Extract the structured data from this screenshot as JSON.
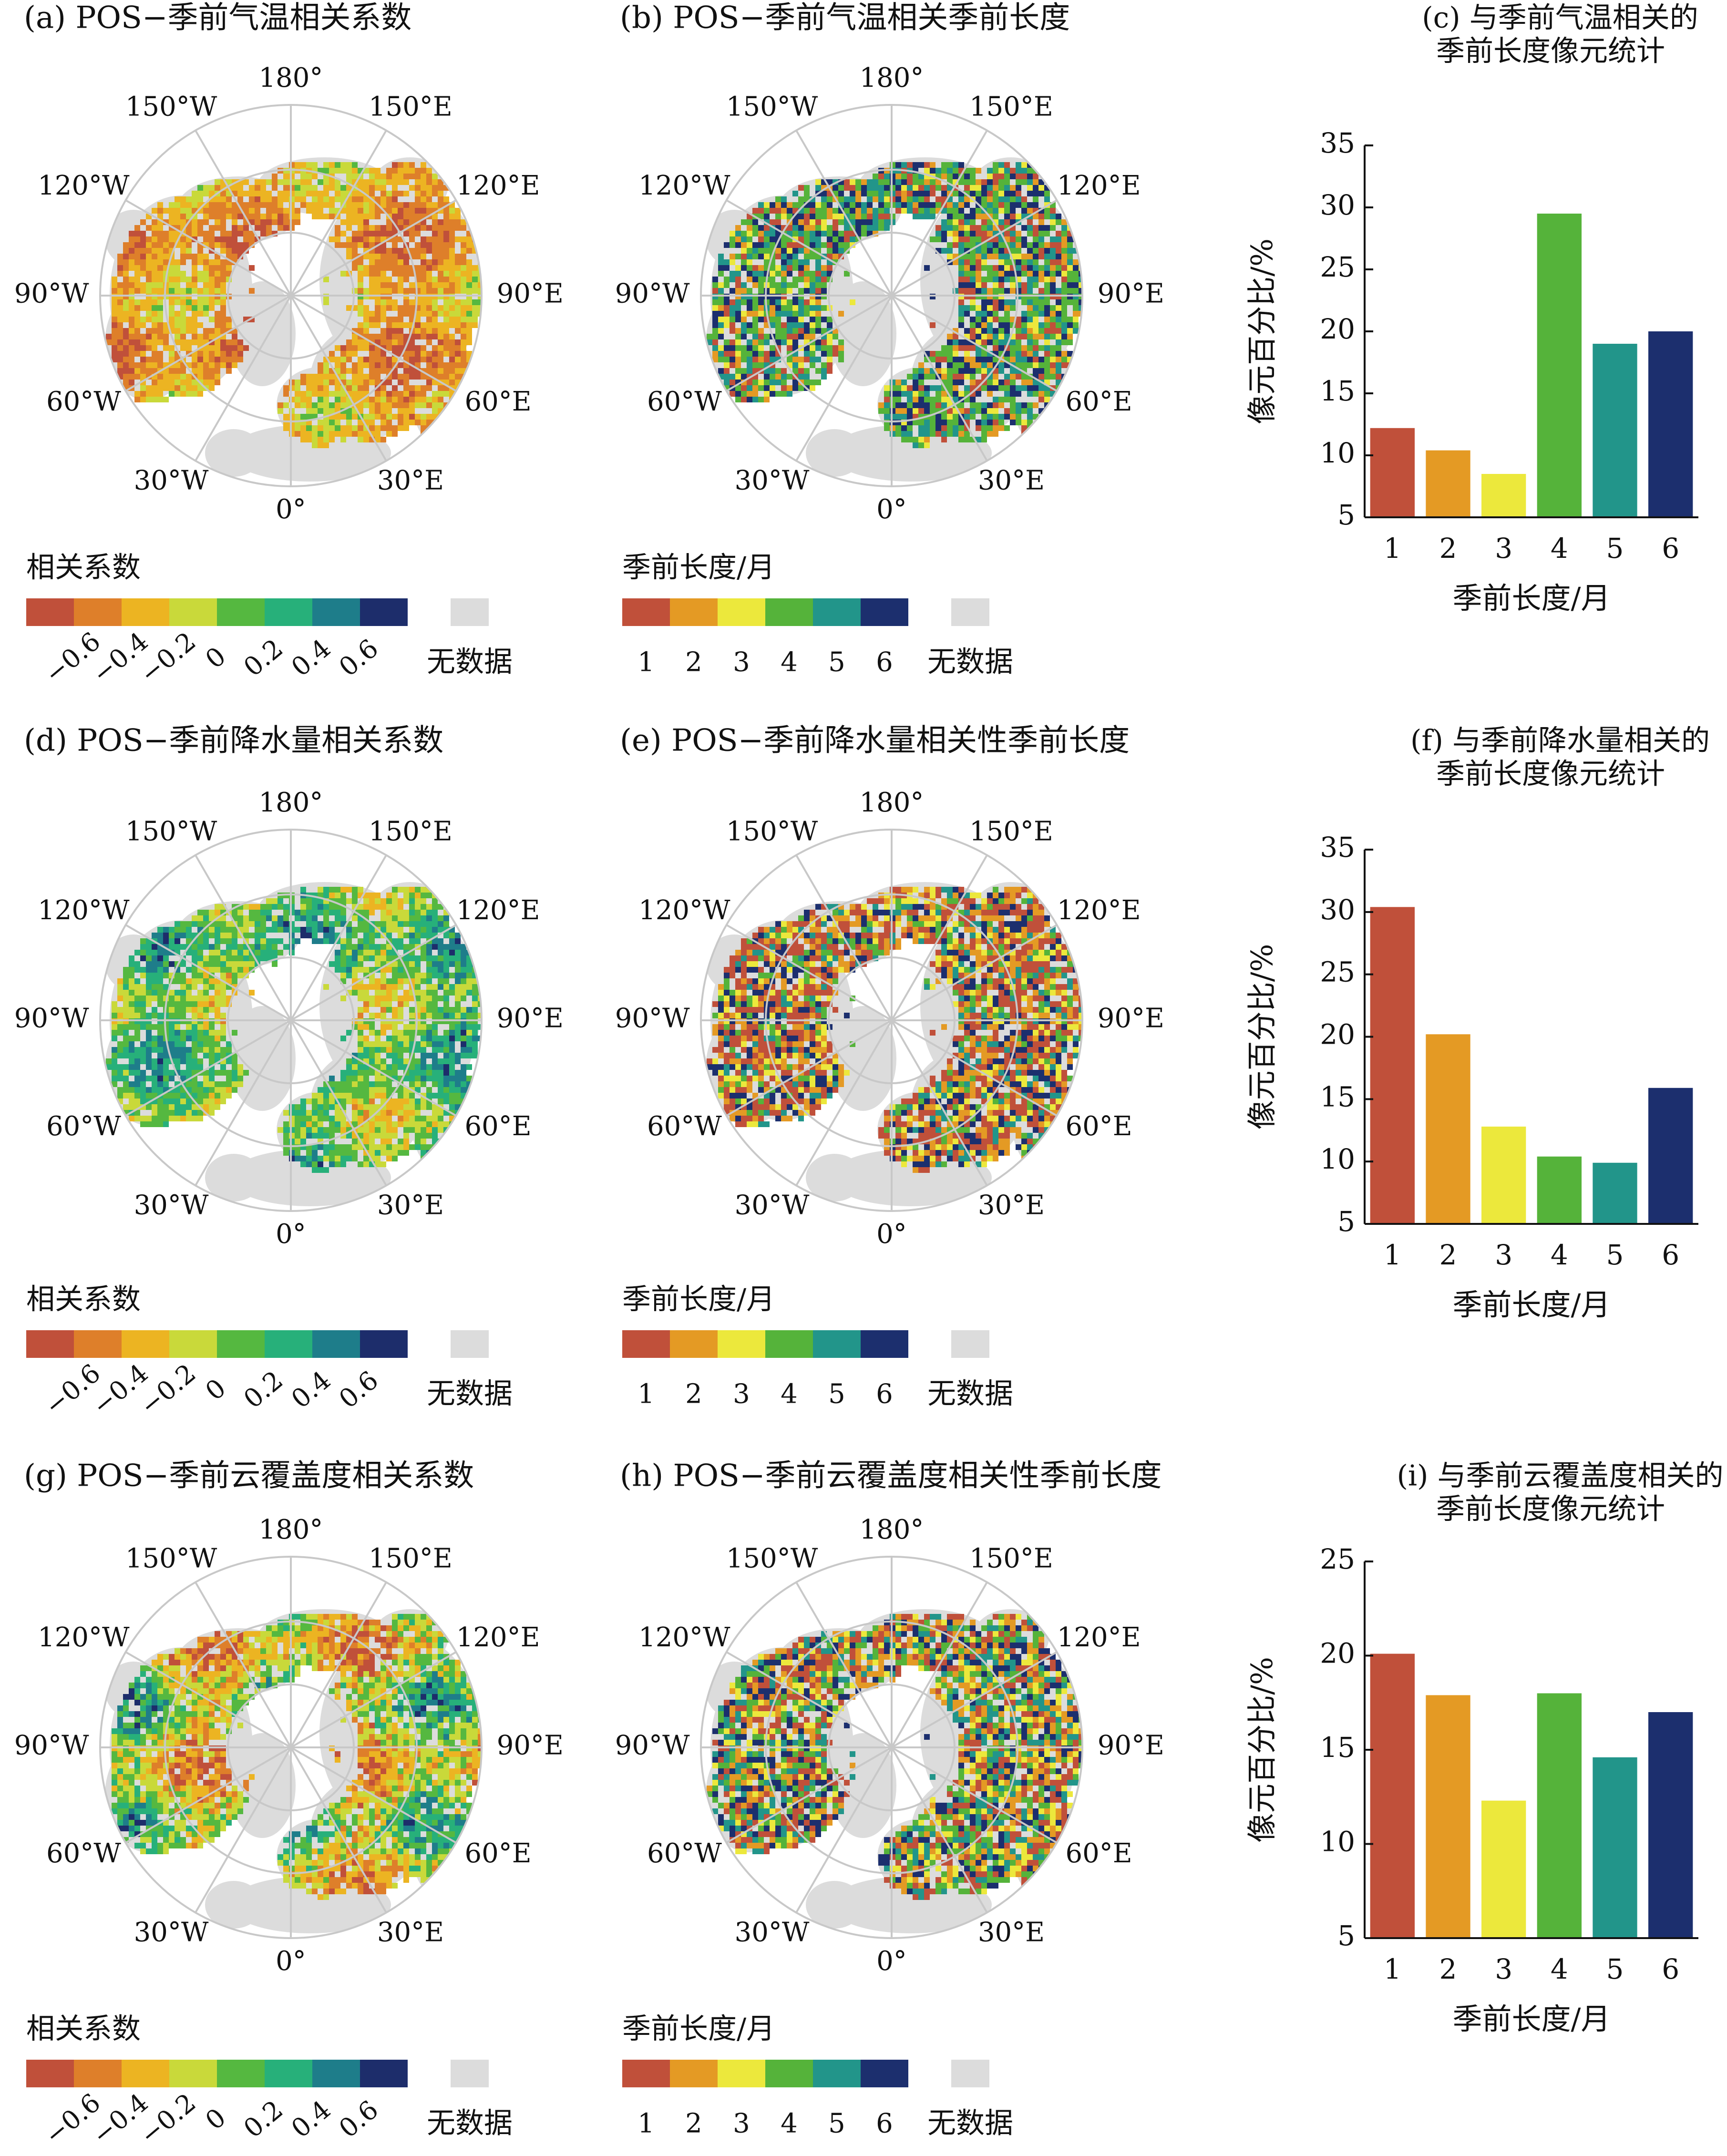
{
  "colors": {
    "corr": [
      "#c0503a",
      "#de7f2a",
      "#ecb422",
      "#c9d93a",
      "#55b840",
      "#27b07a",
      "#1e7d8a",
      "#1d2d6b"
    ],
    "season": [
      "#c0503a",
      "#e49a24",
      "#ece83c",
      "#55b33a",
      "#22958a",
      "#1c2f6e"
    ],
    "nodata": "#dcdcdc",
    "grid": "#c8c8c8"
  },
  "panels": [
    {
      "title": "(a) POS−季前气温相关系数",
      "type": "corr-map",
      "legend_title": "相关系数",
      "legend_ticks": [
        "−0.6",
        "−0.4",
        "−0.2",
        "0",
        "0.2",
        "0.4",
        "0.6"
      ],
      "nodata_label": "无数据",
      "lon_labels": [
        "180°",
        "150°E",
        "120°E",
        "90°E",
        "60°E",
        "30°E",
        "0°",
        "30°W",
        "60°W",
        "90°W",
        "120°W",
        "150°W"
      ]
    },
    {
      "title": "(b) POS−季前气温相关季前长度",
      "type": "season-map",
      "legend_title": "季前长度/月",
      "legend_ticks": [
        "1",
        "2",
        "3",
        "4",
        "5",
        "6"
      ],
      "nodata_label": "无数据",
      "lon_labels": [
        "180°",
        "150°E",
        "120°E",
        "90°E",
        "60°E",
        "30°E",
        "0°",
        "30°W",
        "60°W",
        "90°W",
        "120°W",
        "150°W"
      ]
    },
    {
      "title": "(d) POS−季前降水量相关系数",
      "type": "corr-map",
      "legend_title": "相关系数",
      "legend_ticks": [
        "−0.6",
        "−0.4",
        "−0.2",
        "0",
        "0.2",
        "0.4",
        "0.6"
      ],
      "nodata_label": "无数据",
      "lon_labels": [
        "180°",
        "150°E",
        "120°E",
        "90°E",
        "60°E",
        "30°E",
        "0°",
        "30°W",
        "60°W",
        "90°W",
        "120°W",
        "150°W"
      ]
    },
    {
      "title": "(e) POS−季前降水量相关性季前长度",
      "type": "season-map",
      "legend_title": "季前长度/月",
      "legend_ticks": [
        "1",
        "2",
        "3",
        "4",
        "5",
        "6"
      ],
      "nodata_label": "无数据",
      "lon_labels": [
        "180°",
        "150°E",
        "120°E",
        "90°E",
        "60°E",
        "30°E",
        "0°",
        "30°W",
        "60°W",
        "90°W",
        "120°W",
        "150°W"
      ]
    },
    {
      "title": "(g) POS−季前云覆盖度相关系数",
      "type": "corr-map",
      "legend_title": "相关系数",
      "legend_ticks": [
        "−0.6",
        "−0.4",
        "−0.2",
        "0",
        "0.2",
        "0.4",
        "0.6"
      ],
      "nodata_label": "无数据",
      "lon_labels": [
        "180°",
        "150°E",
        "120°E",
        "90°E",
        "60°E",
        "30°E",
        "0°",
        "30°W",
        "60°W",
        "90°W",
        "120°W",
        "150°W"
      ]
    },
    {
      "title": "(h) POS−季前云覆盖度相关性季前长度",
      "type": "season-map",
      "legend_title": "季前长度/月",
      "legend_ticks": [
        "1",
        "2",
        "3",
        "4",
        "5",
        "6"
      ],
      "nodata_label": "无数据",
      "lon_labels": [
        "180°",
        "150°E",
        "120°E",
        "90°E",
        "60°E",
        "30°E",
        "0°",
        "30°W",
        "60°W",
        "90°W",
        "120°W",
        "150°W"
      ]
    }
  ],
  "chart_data": [
    {
      "type": "bar",
      "title": [
        "(c) 与季前气温相关的",
        "季前长度像元统计"
      ],
      "xlabel": "季前长度/月",
      "ylabel": "像元百分比/%",
      "categories": [
        "1",
        "2",
        "3",
        "4",
        "5",
        "6"
      ],
      "values": [
        12.2,
        10.4,
        8.5,
        29.5,
        19.0,
        20.0
      ],
      "ylim": [
        5,
        35
      ],
      "yticks": [
        5,
        10,
        15,
        20,
        25,
        30,
        35
      ]
    },
    {
      "type": "bar",
      "title": [
        "(f) 与季前降水量相关的",
        "季前长度像元统计"
      ],
      "xlabel": "季前长度/月",
      "ylabel": "像元百分比/%",
      "categories": [
        "1",
        "2",
        "3",
        "4",
        "5",
        "6"
      ],
      "values": [
        30.4,
        20.2,
        12.8,
        10.4,
        9.9,
        15.9
      ],
      "ylim": [
        5,
        35
      ],
      "yticks": [
        5,
        10,
        15,
        20,
        25,
        30,
        35
      ]
    },
    {
      "type": "bar",
      "title": [
        "(i) 与季前云覆盖度相关的",
        "季前长度像元统计"
      ],
      "xlabel": "季前长度/月",
      "ylabel": "像元百分比/%",
      "categories": [
        "1",
        "2",
        "3",
        "4",
        "5",
        "6"
      ],
      "values": [
        20.1,
        17.9,
        12.3,
        18.0,
        14.6,
        17.0
      ],
      "ylim": [
        5,
        25
      ],
      "yticks": [
        5,
        10,
        15,
        20,
        25
      ]
    }
  ]
}
